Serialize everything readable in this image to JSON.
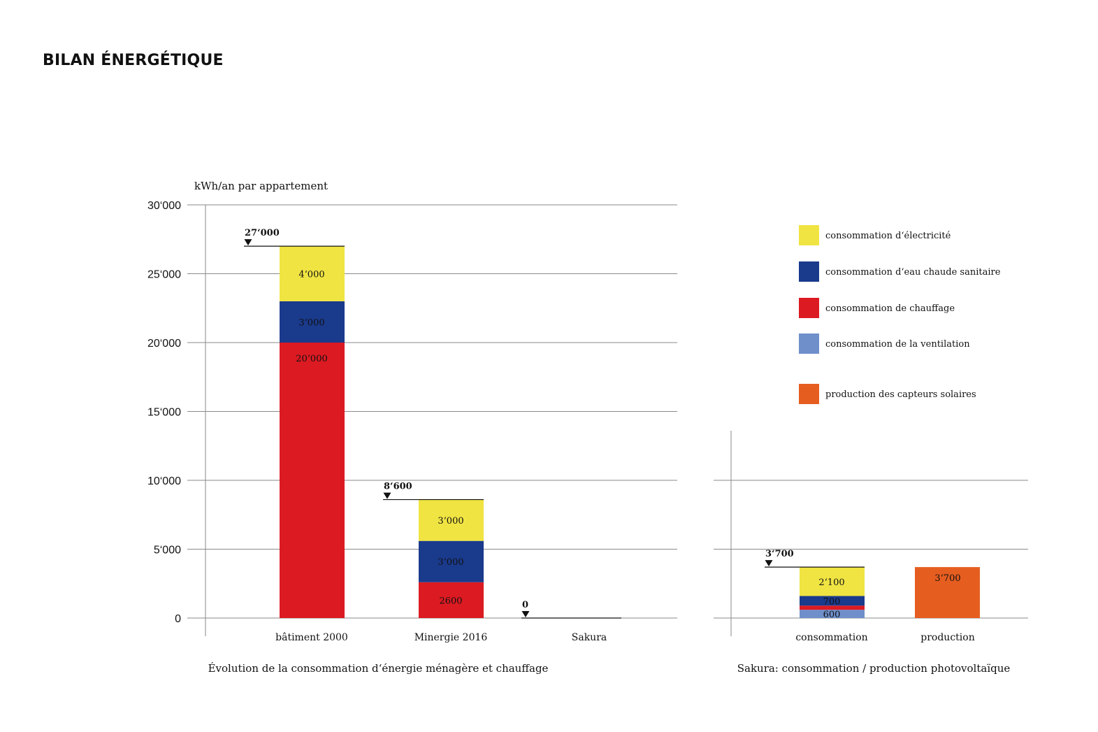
{
  "title": "BILAN ÉNERGÉTIQUE",
  "colors": {
    "electricite": "#f0e442",
    "eau_chaude": "#1a3a8c",
    "chauffage": "#dc1a22",
    "ventilation": "#6f8fcb",
    "production": "#e65d20",
    "grid": "#8a8a8a"
  },
  "legend": [
    {
      "key": "electricite",
      "label": "consommation d‘électricité"
    },
    {
      "key": "eau_chaude",
      "label": "consommation d‘eau chaude sanitaire"
    },
    {
      "key": "chauffage",
      "label": "consommation de chauffage"
    },
    {
      "key": "ventilation",
      "label": "consommation de la ventilation"
    },
    {
      "key": "production",
      "label": "production des capteurs solaires"
    }
  ],
  "chart_data": [
    {
      "type": "bar",
      "stacked": true,
      "title": "Évolution de la consommation d‘énergie ménagère et chauffage",
      "ylabel": "kWh/an par appartement",
      "ylim": [
        0,
        30000
      ],
      "yticks": [
        0,
        5000,
        10000,
        15000,
        20000,
        25000,
        30000
      ],
      "ytick_labels": [
        "0",
        "5‘000",
        "10‘000",
        "15‘000",
        "20‘000",
        "25‘000",
        "30‘000"
      ],
      "grid": true,
      "categories": [
        "bâtiment 2000",
        "Minergie 2016",
        "Sakura"
      ],
      "series": [
        {
          "key": "chauffage",
          "values": [
            20000,
            2600,
            0
          ],
          "labels": [
            "20‘000",
            "2600",
            ""
          ]
        },
        {
          "key": "eau_chaude",
          "values": [
            3000,
            3000,
            0
          ],
          "labels": [
            "3‘000",
            "3‘000",
            ""
          ]
        },
        {
          "key": "electricite",
          "values": [
            4000,
            3000,
            0
          ],
          "labels": [
            "4‘000",
            "3‘000",
            ""
          ]
        }
      ],
      "totals": [
        27000,
        8600,
        0
      ],
      "total_labels": [
        "27‘000",
        "8‘600",
        "0"
      ]
    },
    {
      "type": "bar",
      "stacked": true,
      "title": "Sakura: consommation / production photovoltaïque",
      "ylim": [
        0,
        30000
      ],
      "grid": true,
      "categories": [
        "consommation",
        "production"
      ],
      "series": [
        {
          "key": "ventilation",
          "values": [
            600,
            0
          ],
          "labels": [
            "600",
            ""
          ]
        },
        {
          "key": "chauffage",
          "values": [
            300,
            0
          ],
          "labels": [
            "",
            ""
          ]
        },
        {
          "key": "eau_chaude",
          "values": [
            700,
            0
          ],
          "labels": [
            "700",
            ""
          ]
        },
        {
          "key": "electricite",
          "values": [
            2100,
            0
          ],
          "labels": [
            "2‘100",
            ""
          ]
        },
        {
          "key": "production",
          "values": [
            0,
            3700
          ],
          "labels": [
            "",
            "3‘700"
          ]
        }
      ],
      "totals": [
        3700,
        null
      ],
      "total_labels": [
        "3‘700",
        ""
      ]
    }
  ]
}
